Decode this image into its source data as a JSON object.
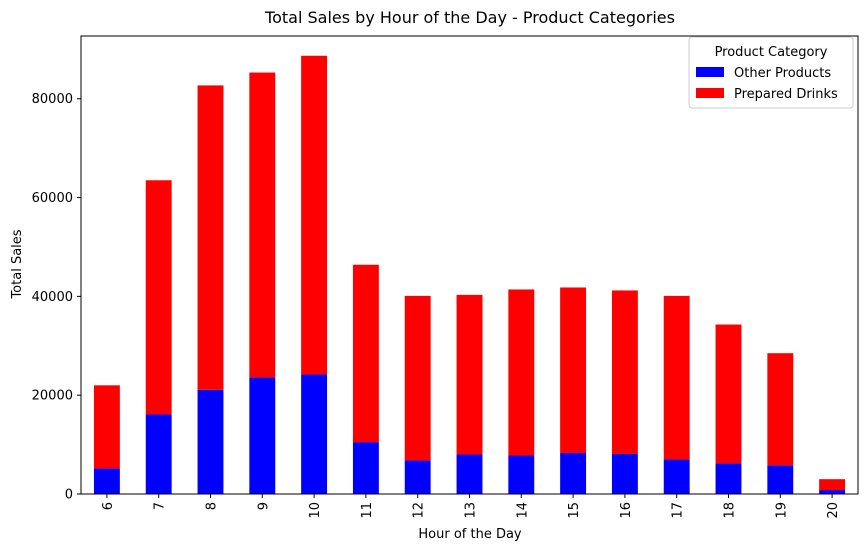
{
  "chart_data": {
    "type": "bar",
    "stacked": true,
    "title": "Total Sales by Hour of the Day - Product Categories",
    "xlabel": "Hour of the Day",
    "ylabel": "Total Sales",
    "categories": [
      "6",
      "7",
      "8",
      "9",
      "10",
      "11",
      "12",
      "13",
      "14",
      "15",
      "16",
      "17",
      "18",
      "19",
      "20"
    ],
    "ylim": [
      0,
      92700
    ],
    "yticks": [
      0,
      20000,
      40000,
      60000,
      80000
    ],
    "ytick_labels": [
      "0",
      "20000",
      "40000",
      "60000",
      "80000"
    ],
    "grid": false,
    "legend": {
      "title": "Product Category",
      "placement": "top-right"
    },
    "series": [
      {
        "name": "Other Products",
        "color": "#0000ff",
        "values": [
          5200,
          16100,
          21100,
          23600,
          24200,
          10500,
          6800,
          8000,
          7800,
          8300,
          8100,
          7000,
          6200,
          5800,
          800
        ]
      },
      {
        "name": "Prepared Drinks",
        "color": "#ff0000",
        "values": [
          16800,
          47400,
          61600,
          61700,
          64500,
          35900,
          33300,
          32300,
          33600,
          33500,
          33100,
          33100,
          28100,
          22700,
          2200
        ]
      }
    ]
  }
}
